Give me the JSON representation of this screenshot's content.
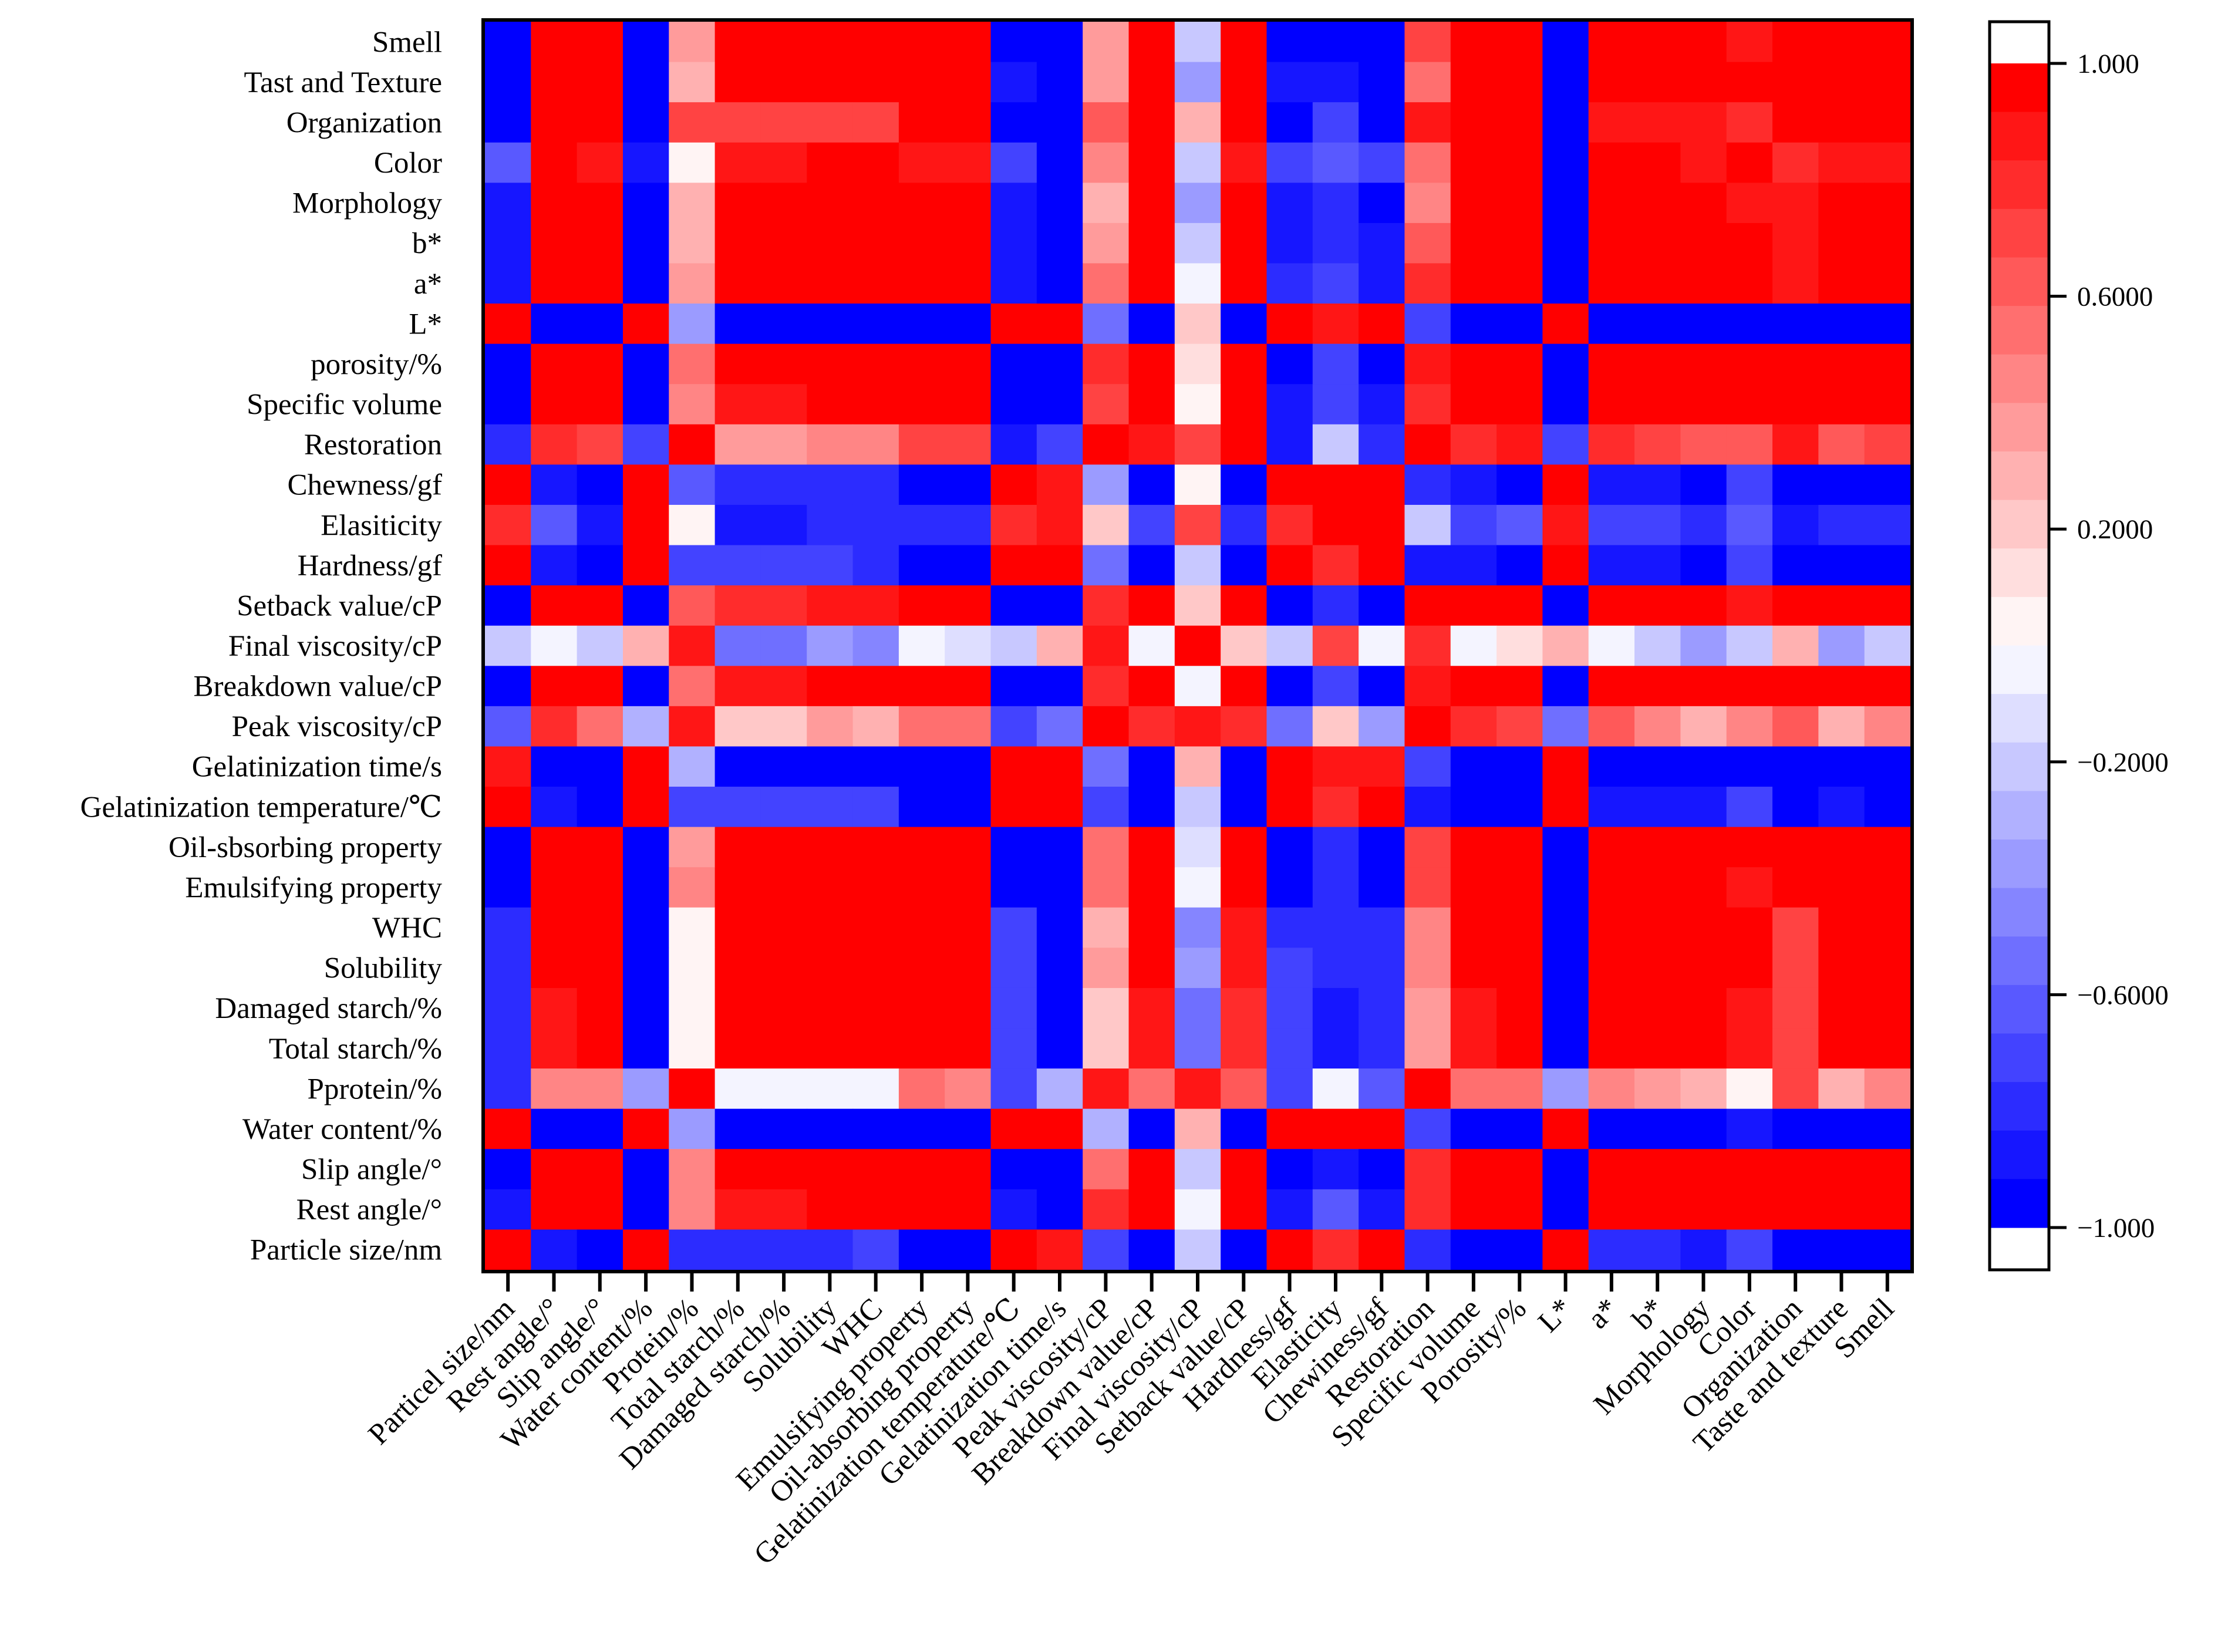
{
  "chart_data": {
    "type": "heatmap",
    "title": "",
    "row_labels": [
      "Smell",
      "Tast and Texture",
      "Organization",
      "Color",
      "Morphology",
      "b*",
      "a*",
      "L*",
      "porosity/%",
      "Specific volume",
      "Restoration",
      "Chewness/gf",
      "Elasiticity",
      "Hardness/gf",
      "Setback value/cP",
      "Final viscosity/cP",
      "Breakdown value/cP",
      "Peak viscosity/cP",
      "Gelatinization time/s",
      "Gelatinization temperature/℃",
      "Oil-sbsorbing property",
      "Emulsifying property",
      "WHC",
      "Solubility",
      "Damaged starch/%",
      "Total starch/%",
      "Pprotein/%",
      "Water content/%",
      "Slip angle/°",
      "Rest angle/°",
      "Particle size/nm"
    ],
    "column_labels": [
      "Particel size/nm",
      "Rest angle/°",
      "Slip angle/°",
      "Water content/%",
      "Protein/%",
      "Total starch/%",
      "Damaged starch/%",
      "Solubility",
      "WHC",
      "Emulsifying property",
      "Oil-absorbing property",
      "Gelatinization temperature/℃",
      "Gelatinization time/s",
      "Peak viscosity/cP",
      "Breakdown value/cP",
      "Final viscosity/cP",
      "Setback value/cP",
      "Hardness/gf",
      "Elasticity",
      "Chewiness/gf",
      "Restoration",
      "Specific volume",
      "Porosity/%",
      "L*",
      "a*",
      "b*",
      "Morphology",
      "Color",
      "Organization",
      "Taste and texture",
      "Smell"
    ],
    "values": [
      [
        -0.98,
        0.97,
        0.97,
        -0.98,
        0.4,
        0.95,
        0.95,
        0.93,
        0.95,
        0.97,
        0.97,
        -0.97,
        -0.98,
        0.4,
        0.97,
        -0.2,
        0.96,
        -0.96,
        -0.93,
        -0.98,
        0.72,
        0.96,
        0.97,
        -0.98,
        0.95,
        0.95,
        0.97,
        0.88,
        0.95,
        0.97,
        1.0
      ],
      [
        -0.93,
        0.97,
        0.97,
        -0.98,
        0.25,
        0.97,
        0.97,
        0.97,
        0.97,
        0.97,
        0.97,
        -0.9,
        -0.97,
        0.35,
        0.97,
        -0.4,
        0.96,
        -0.9,
        -0.85,
        -0.97,
        0.55,
        0.96,
        0.96,
        -0.98,
        0.96,
        0.95,
        0.96,
        0.92,
        0.92,
        1.0,
        0.97
      ],
      [
        -0.97,
        0.95,
        0.95,
        -0.97,
        0.7,
        0.72,
        0.72,
        0.72,
        0.72,
        0.94,
        0.92,
        -0.97,
        -0.98,
        0.6,
        0.96,
        0.25,
        0.96,
        -0.97,
        -0.75,
        -0.98,
        0.85,
        0.95,
        0.95,
        -0.97,
        0.88,
        0.88,
        0.88,
        0.75,
        1.0,
        0.92,
        0.95
      ],
      [
        -0.65,
        0.93,
        0.9,
        -0.9,
        0.05,
        0.88,
        0.88,
        0.93,
        0.93,
        0.88,
        0.88,
        -0.75,
        -0.92,
        0.45,
        0.95,
        -0.25,
        0.88,
        -0.7,
        -0.62,
        -0.7,
        0.55,
        0.95,
        0.92,
        -0.97,
        0.95,
        0.95,
        0.9,
        1.0,
        0.75,
        0.9,
        0.88
      ],
      [
        -0.9,
        0.95,
        0.97,
        -0.98,
        0.25,
        0.97,
        0.97,
        0.97,
        0.97,
        0.97,
        0.97,
        -0.88,
        -0.97,
        0.3,
        0.97,
        -0.4,
        0.95,
        -0.85,
        -0.8,
        -0.92,
        0.45,
        0.95,
        0.95,
        -0.97,
        0.97,
        0.97,
        1.0,
        0.9,
        0.88,
        0.95,
        0.97
      ],
      [
        -0.88,
        0.97,
        0.97,
        -0.97,
        0.3,
        0.95,
        0.95,
        0.97,
        0.97,
        0.97,
        0.97,
        -0.88,
        -0.97,
        0.4,
        0.96,
        -0.25,
        0.95,
        -0.85,
        -0.8,
        -0.88,
        0.65,
        0.95,
        0.95,
        -0.97,
        0.97,
        1.0,
        0.97,
        0.95,
        0.88,
        0.94,
        0.95
      ],
      [
        -0.88,
        0.97,
        0.97,
        -0.95,
        0.35,
        0.93,
        0.93,
        0.95,
        0.93,
        0.95,
        0.95,
        -0.88,
        -0.95,
        0.5,
        0.97,
        -0.05,
        0.95,
        -0.8,
        -0.7,
        -0.85,
        0.75,
        0.96,
        0.96,
        -0.97,
        1.0,
        0.97,
        0.97,
        0.95,
        0.88,
        0.95,
        0.95
      ],
      [
        0.98,
        -0.98,
        -0.98,
        0.98,
        -0.35,
        -0.98,
        -0.98,
        -0.98,
        -0.98,
        -0.98,
        -0.98,
        0.97,
        0.97,
        -0.55,
        -0.98,
        0.2,
        -0.97,
        0.97,
        0.9,
        0.97,
        -0.75,
        -0.97,
        -0.97,
        1.0,
        -0.97,
        -0.97,
        -0.97,
        -0.97,
        -0.97,
        -0.98,
        -0.98
      ],
      [
        -0.97,
        0.98,
        0.98,
        -0.98,
        0.5,
        0.92,
        0.92,
        0.95,
        0.95,
        0.97,
        0.97,
        -0.95,
        -0.97,
        0.75,
        0.97,
        0.15,
        0.95,
        -0.95,
        -0.7,
        -0.95,
        0.85,
        0.97,
        1.0,
        -0.97,
        0.95,
        0.95,
        0.95,
        0.92,
        0.95,
        0.95,
        0.96
      ],
      [
        -0.93,
        0.98,
        0.98,
        -0.97,
        0.45,
        0.9,
        0.9,
        0.95,
        0.95,
        0.97,
        0.97,
        -0.95,
        -0.97,
        0.7,
        0.97,
        0.05,
        0.95,
        -0.9,
        -0.7,
        -0.9,
        0.8,
        1.0,
        0.97,
        -0.97,
        0.96,
        0.95,
        0.95,
        0.95,
        0.95,
        0.95,
        0.96
      ],
      [
        -0.82,
        0.8,
        0.7,
        -0.7,
        0.95,
        0.4,
        0.4,
        0.42,
        0.42,
        0.72,
        0.72,
        -0.9,
        -0.75,
        0.97,
        0.85,
        0.72,
        0.92,
        -0.85,
        -0.25,
        -0.8,
        1.0,
        0.8,
        0.85,
        -0.75,
        0.75,
        0.7,
        0.6,
        0.6,
        0.85,
        0.6,
        0.72
      ],
      [
        0.97,
        -0.88,
        -0.97,
        0.97,
        -0.6,
        -0.82,
        -0.82,
        -0.78,
        -0.78,
        -0.93,
        -0.93,
        0.95,
        0.9,
        -0.35,
        -0.97,
        0.05,
        -0.97,
        0.97,
        0.93,
        1.0,
        -0.8,
        -0.9,
        -0.95,
        0.97,
        -0.85,
        -0.85,
        -0.92,
        -0.75,
        -0.98,
        -0.95,
        -0.97
      ],
      [
        0.8,
        -0.65,
        -0.85,
        0.95,
        0.05,
        -0.88,
        -0.88,
        -0.82,
        -0.82,
        -0.82,
        -0.82,
        0.82,
        0.85,
        0.2,
        -0.72,
        0.72,
        -0.82,
        0.8,
        1.0,
        0.93,
        -0.25,
        -0.7,
        -0.65,
        0.88,
        -0.68,
        -0.75,
        -0.82,
        -0.65,
        -0.88,
        -0.8,
        -0.82
      ],
      [
        0.98,
        -0.9,
        -0.95,
        0.95,
        -0.75,
        -0.75,
        -0.75,
        -0.72,
        -0.78,
        -0.95,
        -0.95,
        0.97,
        0.93,
        -0.55,
        -0.97,
        -0.2,
        -0.97,
        1.0,
        0.8,
        0.97,
        -0.85,
        -0.9,
        -0.97,
        0.97,
        -0.85,
        -0.85,
        -0.92,
        -0.72,
        -0.97,
        -0.92,
        -0.97
      ],
      [
        -0.97,
        0.97,
        0.97,
        -0.98,
        0.6,
        0.82,
        0.82,
        0.88,
        0.9,
        0.97,
        0.97,
        -0.95,
        -0.97,
        0.75,
        0.97,
        0.2,
        1.0,
        -0.97,
        -0.82,
        -0.97,
        0.92,
        0.95,
        0.95,
        -0.97,
        0.95,
        0.95,
        0.95,
        0.9,
        0.96,
        0.95,
        0.96
      ],
      [
        -0.2,
        -0.05,
        -0.2,
        0.3,
        0.88,
        -0.55,
        -0.55,
        -0.38,
        -0.5,
        -0.05,
        -0.15,
        -0.2,
        0.3,
        0.9,
        -0.05,
        1.0,
        0.2,
        -0.2,
        0.7,
        -0.05,
        0.75,
        -0.05,
        0.1,
        0.25,
        -0.05,
        -0.2,
        -0.4,
        -0.25,
        0.25,
        -0.35,
        -0.2
      ],
      [
        -0.97,
        0.97,
        0.97,
        -0.97,
        0.55,
        0.9,
        0.9,
        0.94,
        0.94,
        0.97,
        0.97,
        -0.95,
        -0.97,
        0.75,
        1.0,
        -0.05,
        0.97,
        -0.97,
        -0.72,
        -0.97,
        0.88,
        0.96,
        0.96,
        -0.97,
        0.96,
        0.96,
        0.96,
        0.92,
        0.95,
        0.95,
        0.97
      ],
      [
        -0.65,
        0.75,
        0.5,
        -0.3,
        0.85,
        0.2,
        0.2,
        0.35,
        0.3,
        0.55,
        0.5,
        -0.7,
        -0.55,
        1.0,
        0.75,
        0.9,
        0.75,
        -0.55,
        0.2,
        -0.35,
        0.97,
        0.75,
        0.72,
        -0.55,
        0.6,
        0.45,
        0.3,
        0.45,
        0.65,
        0.3,
        0.45
      ],
      [
        0.9,
        -0.97,
        -0.97,
        0.97,
        -0.3,
        -0.98,
        -0.98,
        -0.98,
        -0.98,
        -0.98,
        -0.98,
        0.95,
        1.0,
        -0.55,
        -0.97,
        0.3,
        -0.97,
        0.93,
        0.85,
        0.9,
        -0.75,
        -0.97,
        -0.97,
        0.97,
        -0.97,
        -0.97,
        -0.97,
        -0.95,
        -0.97,
        -0.97,
        -0.97
      ],
      [
        0.97,
        -0.9,
        -0.97,
        0.97,
        -0.75,
        -0.75,
        -0.75,
        -0.75,
        -0.75,
        -0.93,
        -0.93,
        1.0,
        0.95,
        -0.7,
        -0.95,
        -0.2,
        -0.95,
        0.97,
        0.82,
        0.95,
        -0.9,
        -0.95,
        -0.95,
        0.97,
        -0.88,
        -0.88,
        -0.88,
        -0.75,
        -0.97,
        -0.9,
        -0.97
      ],
      [
        -0.97,
        0.97,
        0.97,
        -0.98,
        0.4,
        0.97,
        0.97,
        0.97,
        0.97,
        0.97,
        1.0,
        -0.93,
        -0.98,
        0.5,
        0.97,
        -0.15,
        0.97,
        -0.95,
        -0.82,
        -0.93,
        0.72,
        0.97,
        0.97,
        -0.98,
        0.95,
        0.97,
        0.97,
        0.92,
        0.95,
        0.97,
        0.97
      ],
      [
        -0.97,
        0.97,
        0.97,
        -0.98,
        0.45,
        0.97,
        0.97,
        0.97,
        0.97,
        1.0,
        0.97,
        -0.93,
        -0.98,
        0.55,
        0.97,
        -0.05,
        0.97,
        -0.95,
        -0.82,
        -0.93,
        0.72,
        0.97,
        0.97,
        -0.98,
        0.95,
        0.97,
        0.97,
        0.9,
        0.93,
        0.95,
        0.97
      ],
      [
        -0.82,
        0.95,
        0.97,
        -0.95,
        0.05,
        0.97,
        0.97,
        0.97,
        1.0,
        0.97,
        0.97,
        -0.75,
        -0.98,
        0.3,
        0.94,
        -0.5,
        0.9,
        -0.78,
        -0.82,
        -0.78,
        0.42,
        0.95,
        0.95,
        -0.98,
        0.93,
        0.97,
        0.97,
        0.93,
        0.72,
        0.97,
        0.95
      ],
      [
        -0.78,
        0.95,
        0.95,
        -0.95,
        0.05,
        0.97,
        0.97,
        1.0,
        0.97,
        0.97,
        0.97,
        -0.75,
        -0.98,
        0.35,
        0.94,
        -0.38,
        0.88,
        -0.72,
        -0.82,
        -0.78,
        0.42,
        0.95,
        0.95,
        -0.98,
        0.95,
        0.97,
        0.97,
        0.93,
        0.72,
        0.97,
        0.93
      ],
      [
        -0.82,
        0.9,
        0.95,
        -0.97,
        0.05,
        0.97,
        1.0,
        0.97,
        0.97,
        0.97,
        0.97,
        -0.75,
        -0.98,
        0.2,
        0.9,
        -0.55,
        0.82,
        -0.75,
        -0.88,
        -0.82,
        0.4,
        0.9,
        0.92,
        -0.98,
        0.93,
        0.95,
        0.97,
        0.88,
        0.72,
        0.97,
        0.95
      ],
      [
        -0.82,
        0.9,
        0.95,
        -0.97,
        0.05,
        1.0,
        0.97,
        0.97,
        0.97,
        0.97,
        0.97,
        -0.75,
        -0.98,
        0.2,
        0.9,
        -0.55,
        0.82,
        -0.75,
        -0.88,
        -0.82,
        0.4,
        0.9,
        0.92,
        -0.98,
        0.93,
        0.95,
        0.97,
        0.88,
        0.72,
        0.97,
        0.95
      ],
      [
        -0.8,
        0.45,
        0.45,
        -0.35,
        1.0,
        -0.05,
        -0.05,
        -0.03,
        -0.03,
        0.5,
        0.45,
        -0.75,
        -0.3,
        0.85,
        0.55,
        0.88,
        0.6,
        -0.75,
        -0.03,
        -0.6,
        0.95,
        0.5,
        0.55,
        -0.35,
        0.45,
        0.35,
        0.3,
        0.02,
        0.7,
        0.25,
        0.45
      ],
      [
        0.98,
        -0.97,
        -0.98,
        1.0,
        -0.35,
        -0.98,
        -0.98,
        -0.97,
        -0.97,
        -0.98,
        -0.98,
        0.97,
        0.97,
        -0.3,
        -0.98,
        0.3,
        -0.98,
        0.95,
        0.95,
        0.97,
        -0.72,
        -0.97,
        -0.97,
        0.98,
        -0.95,
        -0.95,
        -0.95,
        -0.9,
        -0.97,
        -0.98,
        -0.98
      ],
      [
        -0.97,
        0.98,
        1.0,
        -0.98,
        0.45,
        0.95,
        0.95,
        0.95,
        0.97,
        0.97,
        0.97,
        -0.97,
        -0.98,
        0.5,
        0.97,
        -0.2,
        0.97,
        -0.95,
        -0.85,
        -0.97,
        0.75,
        0.97,
        0.98,
        -0.98,
        0.97,
        0.97,
        0.97,
        0.93,
        0.95,
        0.97,
        0.97
      ],
      [
        -0.9,
        1.0,
        0.98,
        -0.97,
        0.45,
        0.9,
        0.9,
        0.93,
        0.95,
        0.97,
        0.97,
        -0.9,
        -0.97,
        0.75,
        0.97,
        -0.05,
        0.97,
        -0.9,
        -0.65,
        -0.88,
        0.82,
        0.97,
        0.98,
        -0.98,
        0.97,
        0.97,
        0.97,
        0.95,
        0.95,
        0.95,
        0.97
      ],
      [
        1.0,
        -0.9,
        -0.97,
        0.98,
        -0.8,
        -0.82,
        -0.82,
        -0.78,
        -0.75,
        -0.95,
        -0.95,
        0.97,
        0.9,
        -0.72,
        -0.97,
        -0.2,
        -0.97,
        0.98,
        0.8,
        0.97,
        -0.82,
        -0.93,
        -0.97,
        0.98,
        -0.82,
        -0.82,
        -0.88,
        -0.68,
        -0.98,
        -0.92,
        -0.98
      ]
    ],
    "colorbar": {
      "min": -1.0,
      "max": 1.0,
      "tick_values": [
        1.0,
        0.6,
        0.2,
        -0.2,
        -0.6,
        -1.0
      ],
      "tick_labels": [
        "1.000",
        "0.6000",
        "0.2000",
        "−0.2000",
        "−0.6000",
        "−1.000"
      ],
      "low_color": "#0000ff",
      "mid_color": "#ffffff",
      "high_color": "#ff0000"
    },
    "legend_placement": "right"
  }
}
